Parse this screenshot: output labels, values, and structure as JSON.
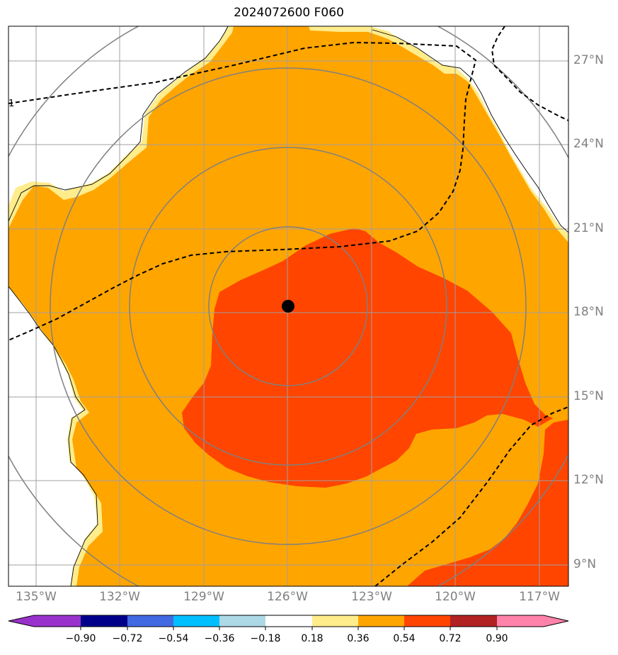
{
  "chart_data": {
    "type": "contour_map",
    "title": "2024072600 F060",
    "projection": "lat-lon",
    "lon_range": [
      -136.3,
      -115.3
    ],
    "lat_range": [
      8.0,
      28.2
    ],
    "lon_ticks": [
      {
        "value": -135,
        "label": "135°W"
      },
      {
        "value": -132,
        "label": "132°W"
      },
      {
        "value": -129,
        "label": "129°W"
      },
      {
        "value": -126,
        "label": "126°W"
      },
      {
        "value": -123,
        "label": "123°W"
      },
      {
        "value": -120,
        "label": "120°W"
      },
      {
        "value": -117,
        "label": "117°W"
      }
    ],
    "lat_ticks": [
      {
        "value": 27,
        "label": "27°N"
      },
      {
        "value": 24,
        "label": "24°N"
      },
      {
        "value": 21,
        "label": "21°N"
      },
      {
        "value": 18,
        "label": "18°N"
      },
      {
        "value": 15,
        "label": "15°N"
      },
      {
        "value": 12,
        "label": "12°N"
      },
      {
        "value": 9,
        "label": "9°N"
      }
    ],
    "grid": true,
    "storm_center": {
      "lon": -126.0,
      "lat": 18.3
    },
    "range_rings_deg": [
      2.8,
      5.6,
      8.4,
      11.2
    ],
    "colorbar": {
      "orientation": "horizontal",
      "extend": "both",
      "levels": [
        -0.9,
        -0.72,
        -0.54,
        -0.36,
        -0.18,
        0.18,
        0.36,
        0.54,
        0.72,
        0.9
      ],
      "tick_labels": [
        "−0.90",
        "−0.72",
        "−0.54",
        "−0.36",
        "−0.18",
        "0.18",
        "0.36",
        "0.54",
        "0.72",
        "0.90"
      ],
      "colors": [
        "#9932CC",
        "#00008B",
        "#4169E1",
        "#00BFFF",
        "#ADD8E6",
        "#FFFFFF",
        "#FFEC8B",
        "#FFA500",
        "#FF4500",
        "#B22222",
        "#FF82AB"
      ]
    },
    "fill_regions": [
      {
        "range": [
          0.18,
          0.36
        ],
        "color": "#FFEC8B"
      },
      {
        "range": [
          0.36,
          0.54
        ],
        "color": "#FFA500"
      },
      {
        "range": [
          0.54,
          0.72
        ],
        "color": "#FF4500"
      }
    ],
    "dashed_contour_label": "1"
  }
}
